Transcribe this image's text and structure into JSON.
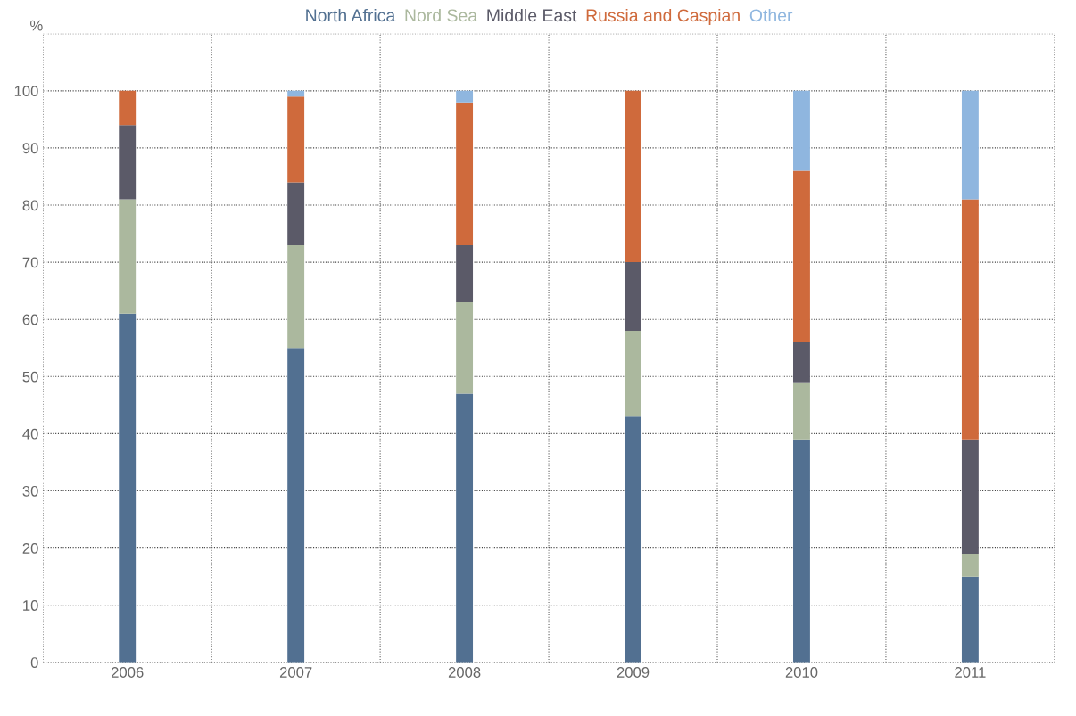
{
  "chart_data": {
    "type": "bar",
    "stacked": true,
    "ylabel": "%",
    "categories": [
      "2006",
      "2007",
      "2008",
      "2009",
      "2010",
      "2011"
    ],
    "series": [
      {
        "name": "North Africa",
        "color": "#527091",
        "values": [
          61,
          55,
          47,
          43,
          39,
          15
        ]
      },
      {
        "name": "Nord Sea",
        "color": "#abb89e",
        "values": [
          20,
          18,
          16,
          15,
          10,
          4
        ]
      },
      {
        "name": "Middle East",
        "color": "#5b5a68",
        "values": [
          13,
          11,
          10,
          12,
          7,
          20
        ]
      },
      {
        "name": "Russia and Caspian",
        "color": "#cf6a3c",
        "values": [
          6,
          15,
          25,
          30,
          30,
          42
        ]
      },
      {
        "name": "Other",
        "color": "#8fb6df",
        "values": [
          0,
          1,
          2,
          0,
          14,
          19
        ]
      }
    ],
    "ylim": [
      0,
      110
    ],
    "yticks": [
      0,
      10,
      20,
      30,
      40,
      50,
      60,
      70,
      80,
      90,
      100,
      {
        "value": 110,
        "label": null
      }
    ],
    "grid": true,
    "legend": "top"
  }
}
